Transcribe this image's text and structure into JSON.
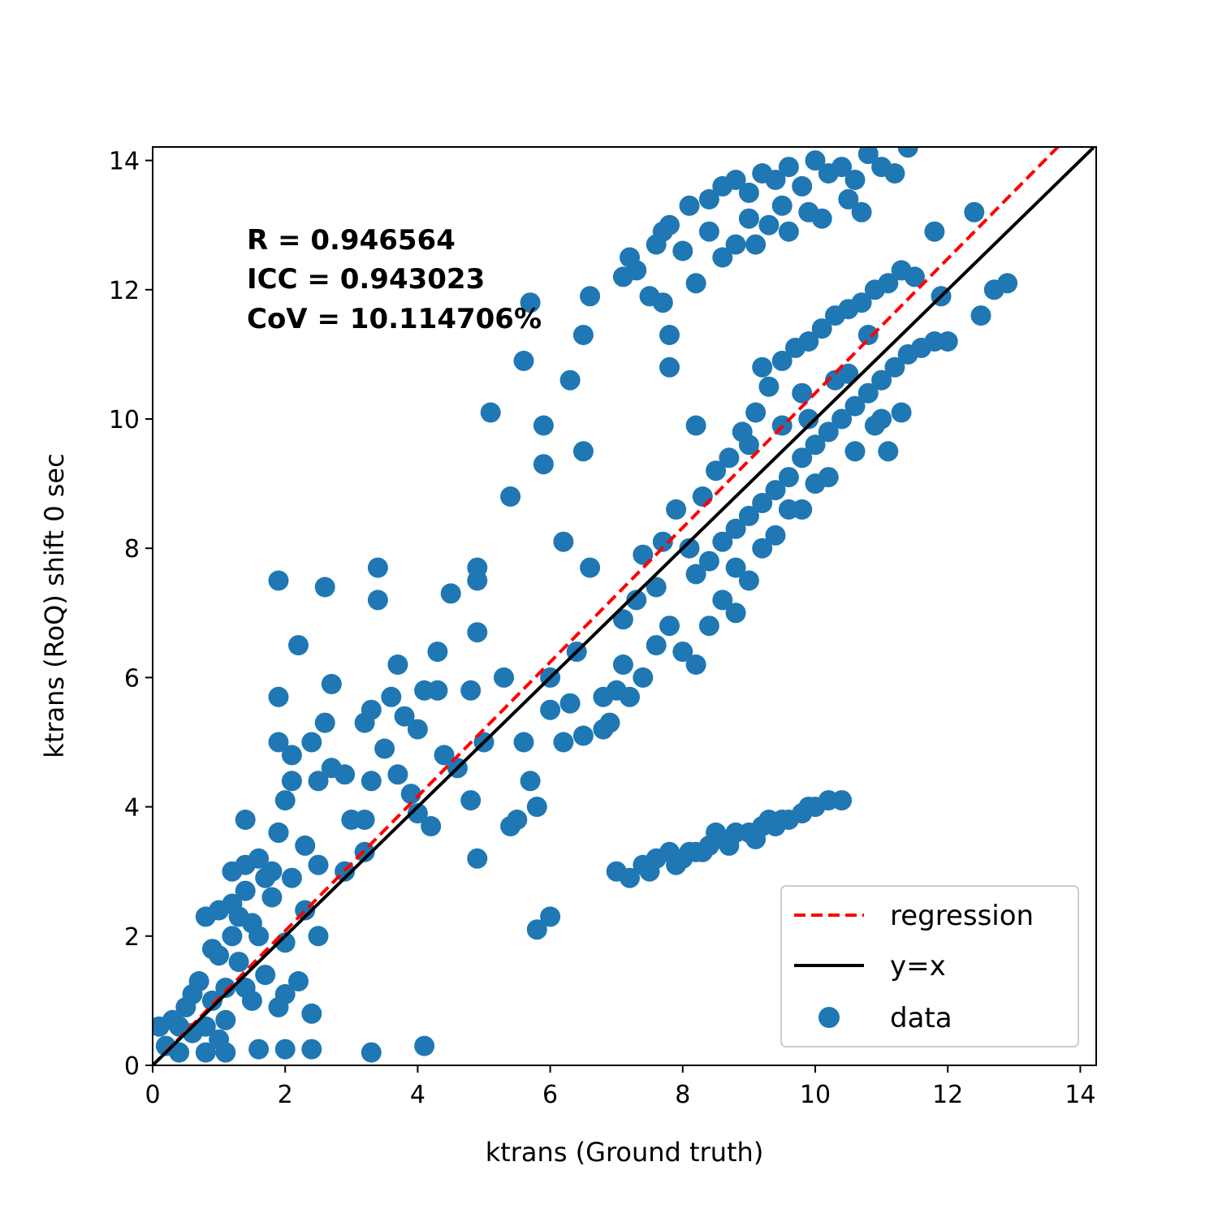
{
  "chart_data": {
    "type": "scatter",
    "xlabel": "ktrans (Ground truth)",
    "ylabel": "ktrans (RoQ) shift 0 sec",
    "xlim": [
      0,
      14.2
    ],
    "ylim": [
      0,
      14.2
    ],
    "xticks": [
      0,
      2,
      4,
      6,
      8,
      10,
      12,
      14
    ],
    "yticks": [
      0,
      2,
      4,
      6,
      8,
      10,
      12,
      14
    ],
    "annotations": [
      "R = 0.946564",
      "ICC = 0.943023",
      "CoV = 10.114706%"
    ],
    "legend": {
      "placement": "lower-right",
      "entries": [
        "regression",
        "y=x",
        "data"
      ]
    },
    "colors": {
      "data": "#1f77b4",
      "regression": "#ff0000",
      "identity": "#000000"
    },
    "regression": {
      "slope": 1.04,
      "intercept": 0.0
    },
    "series": [
      {
        "name": "data",
        "points": [
          [
            0.1,
            0.6
          ],
          [
            0.2,
            0.3
          ],
          [
            0.3,
            0.7
          ],
          [
            0.4,
            0.2
          ],
          [
            0.5,
            0.9
          ],
          [
            0.6,
            0.5
          ],
          [
            0.7,
            1.3
          ],
          [
            0.8,
            0.6
          ],
          [
            0.9,
            1.8
          ],
          [
            1.0,
            0.4
          ],
          [
            1.0,
            2.4
          ],
          [
            1.1,
            1.2
          ],
          [
            1.2,
            2.0
          ],
          [
            1.2,
            3.0
          ],
          [
            1.3,
            1.6
          ],
          [
            1.4,
            2.7
          ],
          [
            1.5,
            1.0
          ],
          [
            1.5,
            2.2
          ],
          [
            1.6,
            3.2
          ],
          [
            1.7,
            1.4
          ],
          [
            1.8,
            2.6
          ],
          [
            1.9,
            0.9
          ],
          [
            1.9,
            3.6
          ],
          [
            2.0,
            1.9
          ],
          [
            2.1,
            2.9
          ],
          [
            2.2,
            1.3
          ],
          [
            2.3,
            2.4
          ],
          [
            2.4,
            0.8
          ],
          [
            0.9,
            1.0
          ],
          [
            1.1,
            0.7
          ],
          [
            1.3,
            2.3
          ],
          [
            1.6,
            2.0
          ],
          [
            1.7,
            2.9
          ],
          [
            1.4,
            1.2
          ],
          [
            2.0,
            1.1
          ],
          [
            0.6,
            1.1
          ],
          [
            0.4,
            0.6
          ],
          [
            0.8,
            2.3
          ],
          [
            1.0,
            1.7
          ],
          [
            2.5,
            2.0
          ],
          [
            1.6,
            0.25
          ],
          [
            2.0,
            0.25
          ],
          [
            2.4,
            0.25
          ],
          [
            3.3,
            0.2
          ],
          [
            4.1,
            0.3
          ],
          [
            1.1,
            0.2
          ],
          [
            0.8,
            0.2
          ],
          [
            1.4,
            3.1
          ],
          [
            1.8,
            3.0
          ],
          [
            1.2,
            2.5
          ],
          [
            1.9,
            7.5
          ],
          [
            2.6,
            7.4
          ],
          [
            2.2,
            6.5
          ],
          [
            1.9,
            5.7
          ],
          [
            2.7,
            5.9
          ],
          [
            1.9,
            5.0
          ],
          [
            2.6,
            5.3
          ],
          [
            2.4,
            5.0
          ],
          [
            2.1,
            4.8
          ],
          [
            2.0,
            4.1
          ],
          [
            2.1,
            4.4
          ],
          [
            2.5,
            4.4
          ],
          [
            2.7,
            4.6
          ],
          [
            2.9,
            4.5
          ],
          [
            3.2,
            5.3
          ],
          [
            3.3,
            5.5
          ],
          [
            3.5,
            4.9
          ],
          [
            3.3,
            4.4
          ],
          [
            3.2,
            3.8
          ],
          [
            3.0,
            3.8
          ],
          [
            1.4,
            3.8
          ],
          [
            1.9,
            3.6
          ],
          [
            2.3,
            3.4
          ],
          [
            2.5,
            3.1
          ],
          [
            2.9,
            3.0
          ],
          [
            3.2,
            3.3
          ],
          [
            3.4,
            7.7
          ],
          [
            3.4,
            7.2
          ],
          [
            3.7,
            6.2
          ],
          [
            3.6,
            5.7
          ],
          [
            3.8,
            5.4
          ],
          [
            4.0,
            5.2
          ],
          [
            4.1,
            5.8
          ],
          [
            4.3,
            5.8
          ],
          [
            3.7,
            4.5
          ],
          [
            3.9,
            4.2
          ],
          [
            4.0,
            3.9
          ],
          [
            4.2,
            3.7
          ],
          [
            4.5,
            7.3
          ],
          [
            4.3,
            6.4
          ],
          [
            4.4,
            4.8
          ],
          [
            4.6,
            4.6
          ],
          [
            4.8,
            5.8
          ],
          [
            4.9,
            7.7
          ],
          [
            4.9,
            7.5
          ],
          [
            4.9,
            6.7
          ],
          [
            4.8,
            4.1
          ],
          [
            4.9,
            3.2
          ],
          [
            5.0,
            5.0
          ],
          [
            5.1,
            10.1
          ],
          [
            5.3,
            6.0
          ],
          [
            5.4,
            8.8
          ],
          [
            5.4,
            3.7
          ],
          [
            5.5,
            3.8
          ],
          [
            5.6,
            10.9
          ],
          [
            5.7,
            11.8
          ],
          [
            5.9,
            9.9
          ],
          [
            5.9,
            9.3
          ],
          [
            5.6,
            5.0
          ],
          [
            5.7,
            4.4
          ],
          [
            5.8,
            4.0
          ],
          [
            5.8,
            2.1
          ],
          [
            6.0,
            2.3
          ],
          [
            6.0,
            5.5
          ],
          [
            6.2,
            8.1
          ],
          [
            6.3,
            10.6
          ],
          [
            6.5,
            11.3
          ],
          [
            6.6,
            11.9
          ],
          [
            6.5,
            9.5
          ],
          [
            6.6,
            7.7
          ],
          [
            6.3,
            5.6
          ],
          [
            6.5,
            5.1
          ],
          [
            6.2,
            5.0
          ],
          [
            6.0,
            6.0
          ],
          [
            6.4,
            6.4
          ],
          [
            6.8,
            5.7
          ],
          [
            6.9,
            5.3
          ],
          [
            7.1,
            6.9
          ],
          [
            7.3,
            7.2
          ],
          [
            7.4,
            7.9
          ],
          [
            7.0,
            3.0
          ],
          [
            7.2,
            2.9
          ],
          [
            7.4,
            3.1
          ],
          [
            7.6,
            3.2
          ],
          [
            7.8,
            3.3
          ],
          [
            8.0,
            3.2
          ],
          [
            8.2,
            3.3
          ],
          [
            8.4,
            3.4
          ],
          [
            8.6,
            3.5
          ],
          [
            8.8,
            3.6
          ],
          [
            9.0,
            3.6
          ],
          [
            9.2,
            3.7
          ],
          [
            9.4,
            3.7
          ],
          [
            9.6,
            3.8
          ],
          [
            9.8,
            3.9
          ],
          [
            10.0,
            4.0
          ],
          [
            10.2,
            4.1
          ],
          [
            10.4,
            4.1
          ],
          [
            9.5,
            3.8
          ],
          [
            9.1,
            3.5
          ],
          [
            8.7,
            3.4
          ],
          [
            8.3,
            3.3
          ],
          [
            7.9,
            3.1
          ],
          [
            7.5,
            3.0
          ],
          [
            8.5,
            3.6
          ],
          [
            9.3,
            3.8
          ],
          [
            9.9,
            4.0
          ],
          [
            8.1,
            3.3
          ],
          [
            7.1,
            6.2
          ],
          [
            7.1,
            12.2
          ],
          [
            7.2,
            12.5
          ],
          [
            7.3,
            12.3
          ],
          [
            7.5,
            11.9
          ],
          [
            7.7,
            11.8
          ],
          [
            7.8,
            11.3
          ],
          [
            7.8,
            10.8
          ],
          [
            7.7,
            12.9
          ],
          [
            7.8,
            13.0
          ],
          [
            7.6,
            12.7
          ],
          [
            8.0,
            12.6
          ],
          [
            8.2,
            12.1
          ],
          [
            8.1,
            13.3
          ],
          [
            8.4,
            13.4
          ],
          [
            8.6,
            13.6
          ],
          [
            8.8,
            13.7
          ],
          [
            9.0,
            13.5
          ],
          [
            9.2,
            13.8
          ],
          [
            9.4,
            13.7
          ],
          [
            9.6,
            13.9
          ],
          [
            9.8,
            13.6
          ],
          [
            10.0,
            14.0
          ],
          [
            10.2,
            13.8
          ],
          [
            10.4,
            13.9
          ],
          [
            10.6,
            13.7
          ],
          [
            10.8,
            14.1
          ],
          [
            11.0,
            13.9
          ],
          [
            11.2,
            13.8
          ],
          [
            11.4,
            14.2
          ],
          [
            10.5,
            13.4
          ],
          [
            9.9,
            13.2
          ],
          [
            9.3,
            13.0
          ],
          [
            8.8,
            12.7
          ],
          [
            8.6,
            12.5
          ],
          [
            9.1,
            12.7
          ],
          [
            9.6,
            12.9
          ],
          [
            10.1,
            13.1
          ],
          [
            8.4,
            12.9
          ],
          [
            9.0,
            13.1
          ],
          [
            9.5,
            13.3
          ],
          [
            10.7,
            13.2
          ],
          [
            7.6,
            7.4
          ],
          [
            7.7,
            8.1
          ],
          [
            7.9,
            8.6
          ],
          [
            8.1,
            8.0
          ],
          [
            8.3,
            8.8
          ],
          [
            8.5,
            9.2
          ],
          [
            8.7,
            9.4
          ],
          [
            8.9,
            9.8
          ],
          [
            9.1,
            10.1
          ],
          [
            9.3,
            10.5
          ],
          [
            9.5,
            10.9
          ],
          [
            9.7,
            11.1
          ],
          [
            9.9,
            11.2
          ],
          [
            10.1,
            11.4
          ],
          [
            10.3,
            11.6
          ],
          [
            10.5,
            11.7
          ],
          [
            10.7,
            11.8
          ],
          [
            10.9,
            12.0
          ],
          [
            11.1,
            12.1
          ],
          [
            11.3,
            12.3
          ],
          [
            11.5,
            12.2
          ],
          [
            8.2,
            7.6
          ],
          [
            8.4,
            7.8
          ],
          [
            8.6,
            8.1
          ],
          [
            8.8,
            8.3
          ],
          [
            9.0,
            8.5
          ],
          [
            9.2,
            8.7
          ],
          [
            9.4,
            8.9
          ],
          [
            9.6,
            9.1
          ],
          [
            9.8,
            9.4
          ],
          [
            10.0,
            9.6
          ],
          [
            10.2,
            9.8
          ],
          [
            10.4,
            10.0
          ],
          [
            10.6,
            10.2
          ],
          [
            10.8,
            10.4
          ],
          [
            11.0,
            10.6
          ],
          [
            11.2,
            10.8
          ],
          [
            11.4,
            11.0
          ],
          [
            11.6,
            11.1
          ],
          [
            11.8,
            11.2
          ],
          [
            12.0,
            11.2
          ],
          [
            11.9,
            11.9
          ],
          [
            11.8,
            12.9
          ],
          [
            12.4,
            13.2
          ],
          [
            12.5,
            11.6
          ],
          [
            12.7,
            12.0
          ],
          [
            12.9,
            12.1
          ],
          [
            11.1,
            9.5
          ],
          [
            10.9,
            9.9
          ],
          [
            11.3,
            10.1
          ],
          [
            10.5,
            10.7
          ],
          [
            10.0,
            9.0
          ],
          [
            9.6,
            8.6
          ],
          [
            9.2,
            8.0
          ],
          [
            8.8,
            7.7
          ],
          [
            8.6,
            7.2
          ],
          [
            8.4,
            6.8
          ],
          [
            8.2,
            6.2
          ],
          [
            8.0,
            6.4
          ],
          [
            7.8,
            6.8
          ],
          [
            7.6,
            6.5
          ],
          [
            7.4,
            6.0
          ],
          [
            7.2,
            5.7
          ],
          [
            7.0,
            5.8
          ],
          [
            6.8,
            5.2
          ],
          [
            8.8,
            7.0
          ],
          [
            9.0,
            7.5
          ],
          [
            9.4,
            8.2
          ],
          [
            9.8,
            8.6
          ],
          [
            10.2,
            9.1
          ],
          [
            10.6,
            9.5
          ],
          [
            11.0,
            10.0
          ],
          [
            9.2,
            10.8
          ],
          [
            9.8,
            10.4
          ],
          [
            10.3,
            10.6
          ],
          [
            10.8,
            11.3
          ],
          [
            9.5,
            9.9
          ],
          [
            9.9,
            10.0
          ],
          [
            8.2,
            9.9
          ],
          [
            9.0,
            9.6
          ]
        ]
      }
    ]
  }
}
